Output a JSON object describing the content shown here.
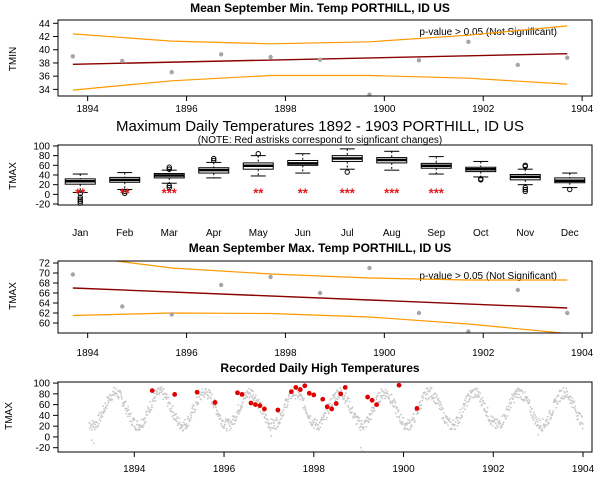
{
  "chart_data": [
    {
      "type": "scatter",
      "title": "Mean September Min. Temp PORTHILL, ID US",
      "ylabel": "TMIN",
      "xlim": [
        1893.4,
        1904.2
      ],
      "ylim": [
        33,
        44.5
      ],
      "x_ticks": [
        "1894",
        "1896",
        "1898",
        "1900",
        "1902",
        "1904"
      ],
      "y_ticks": [
        "34",
        "36",
        "38",
        "40",
        "42",
        "44"
      ],
      "annotation": "p-value > 0.05 (Not Significant)",
      "points": [
        {
          "x": 1893.7,
          "y": 39.0
        },
        {
          "x": 1894.7,
          "y": 38.3
        },
        {
          "x": 1895.7,
          "y": 36.6
        },
        {
          "x": 1896.7,
          "y": 39.3
        },
        {
          "x": 1897.7,
          "y": 38.9
        },
        {
          "x": 1898.7,
          "y": 38.5
        },
        {
          "x": 1899.7,
          "y": 33.2
        },
        {
          "x": 1900.7,
          "y": 38.4
        },
        {
          "x": 1901.7,
          "y": 41.2
        },
        {
          "x": 1902.7,
          "y": 37.7
        },
        {
          "x": 1903.7,
          "y": 38.8
        }
      ],
      "trend": [
        {
          "x": 1893.7,
          "y": 37.8
        },
        {
          "x": 1903.7,
          "y": 39.4
        }
      ],
      "upper_band": [
        {
          "x": 1893.7,
          "y": 42.4
        },
        {
          "x": 1895.7,
          "y": 41.3
        },
        {
          "x": 1897.7,
          "y": 40.9
        },
        {
          "x": 1899.7,
          "y": 41.2
        },
        {
          "x": 1901.7,
          "y": 42.2
        },
        {
          "x": 1903.7,
          "y": 43.6
        }
      ],
      "lower_band": [
        {
          "x": 1893.7,
          "y": 33.9
        },
        {
          "x": 1895.7,
          "y": 35.3
        },
        {
          "x": 1897.7,
          "y": 36.1
        },
        {
          "x": 1899.7,
          "y": 36.1
        },
        {
          "x": 1901.7,
          "y": 35.7
        },
        {
          "x": 1903.7,
          "y": 34.8
        }
      ],
      "colors": {
        "points": "#a6a6a6",
        "trend": "#8b0000",
        "band": "#ff9900"
      }
    },
    {
      "type": "box",
      "title": "Maximum Daily Temperatures 1892 - 1903 PORTHILL, ID US",
      "subtitle": "(NOTE: Red astrisks correspond to signficant changes)",
      "ylabel": "TMAX",
      "ylim": [
        -22,
        102
      ],
      "y_ticks": [
        "100",
        "80",
        "60",
        "40",
        "20",
        "0",
        "-20"
      ],
      "categories": [
        "Jan",
        "Feb",
        "Mar",
        "Apr",
        "May",
        "Jun",
        "Jul",
        "Aug",
        "Sep",
        "Oct",
        "Nov",
        "Dec"
      ],
      "boxes": [
        {
          "min": 4,
          "q1": 21,
          "median": 27,
          "q3": 32,
          "max": 42,
          "outliers": [
            -6,
            -10,
            -14,
            -18,
            2
          ]
        },
        {
          "min": 10,
          "q1": 25,
          "median": 30,
          "q3": 35,
          "max": 45,
          "outliers": [
            6,
            2
          ]
        },
        {
          "min": 23,
          "q1": 34,
          "median": 39,
          "q3": 43,
          "max": 50,
          "outliers": [
            18,
            14,
            52,
            56
          ]
        },
        {
          "min": 34,
          "q1": 44,
          "median": 50,
          "q3": 55,
          "max": 66,
          "outliers": [
            74,
            70
          ]
        },
        {
          "min": 38,
          "q1": 52,
          "median": 59,
          "q3": 65,
          "max": 80,
          "outliers": [
            84
          ]
        },
        {
          "min": 44,
          "q1": 60,
          "median": 64,
          "q3": 70,
          "max": 84,
          "outliers": []
        },
        {
          "min": 52,
          "q1": 68,
          "median": 74,
          "q3": 80,
          "max": 94,
          "outliers": [
            46
          ]
        },
        {
          "min": 50,
          "q1": 65,
          "median": 71,
          "q3": 76,
          "max": 89,
          "outliers": []
        },
        {
          "min": 42,
          "q1": 54,
          "median": 59,
          "q3": 64,
          "max": 78,
          "outliers": []
        },
        {
          "min": 36,
          "q1": 47,
          "median": 52,
          "q3": 56,
          "max": 68,
          "outliers": [
            32,
            30
          ]
        },
        {
          "min": 20,
          "q1": 30,
          "median": 36,
          "q3": 41,
          "max": 52,
          "outliers": [
            6,
            10,
            14,
            58,
            60
          ]
        },
        {
          "min": 14,
          "q1": 24,
          "median": 28,
          "q3": 34,
          "max": 44,
          "outliers": [
            10
          ]
        }
      ],
      "significance": [
        "**",
        "**",
        "***",
        "",
        "**",
        "**",
        "***",
        "***",
        "***",
        "",
        "",
        ""
      ],
      "colors": {
        "stars": "#e31a1c"
      }
    },
    {
      "type": "scatter",
      "title": "Mean September Max. Temp PORTHILL, ID US",
      "ylabel": "TMAX",
      "xlim": [
        1893.4,
        1904.2
      ],
      "ylim": [
        58,
        72.4
      ],
      "x_ticks": [
        "1894",
        "1896",
        "1898",
        "1900",
        "1902",
        "1904"
      ],
      "y_ticks": [
        "60",
        "62",
        "64",
        "66",
        "68",
        "70",
        "72"
      ],
      "annotation": "p-value > 0.05 (Not Significant)",
      "points": [
        {
          "x": 1893.7,
          "y": 69.7
        },
        {
          "x": 1894.7,
          "y": 63.3
        },
        {
          "x": 1895.7,
          "y": 61.7
        },
        {
          "x": 1896.7,
          "y": 67.6
        },
        {
          "x": 1897.7,
          "y": 69.2
        },
        {
          "x": 1898.7,
          "y": 66.0
        },
        {
          "x": 1899.7,
          "y": 71.0
        },
        {
          "x": 1900.7,
          "y": 62.0
        },
        {
          "x": 1901.7,
          "y": 58.3
        },
        {
          "x": 1902.7,
          "y": 66.6
        },
        {
          "x": 1903.7,
          "y": 62.0
        }
      ],
      "trend": [
        {
          "x": 1893.7,
          "y": 67.0
        },
        {
          "x": 1903.7,
          "y": 63.0
        }
      ],
      "upper_band": [
        {
          "x": 1893.7,
          "y": 73.5
        },
        {
          "x": 1895.7,
          "y": 71.0
        },
        {
          "x": 1897.7,
          "y": 69.8
        },
        {
          "x": 1899.7,
          "y": 69.0
        },
        {
          "x": 1901.7,
          "y": 68.6
        },
        {
          "x": 1903.7,
          "y": 68.6
        }
      ],
      "lower_band": [
        {
          "x": 1893.7,
          "y": 61.5
        },
        {
          "x": 1895.7,
          "y": 62.0
        },
        {
          "x": 1897.7,
          "y": 61.9
        },
        {
          "x": 1899.7,
          "y": 61.2
        },
        {
          "x": 1901.7,
          "y": 59.8
        },
        {
          "x": 1903.7,
          "y": 57.9
        }
      ],
      "colors": {
        "points": "#a6a6a6",
        "trend": "#8b0000",
        "band": "#ff9900"
      }
    },
    {
      "type": "scatter",
      "title": "Recorded Daily High Temperatures",
      "ylabel": "TMAX",
      "xlim": [
        1892.3,
        1904.2
      ],
      "ylim": [
        -28,
        102
      ],
      "x_ticks": [
        "1894",
        "1896",
        "1898",
        "1900",
        "1902",
        "1904"
      ],
      "y_ticks": [
        "100",
        "80",
        "60",
        "40",
        "20",
        "0",
        "-20"
      ],
      "series": [
        {
          "name": "daily",
          "x_range": [
            1893.0,
            1904.0
          ],
          "y_min_winter": 22,
          "y_max_summer": 82
        },
        {
          "name": "record",
          "points": [
            {
              "x": 1894.4,
              "y": 86
            },
            {
              "x": 1894.9,
              "y": 79
            },
            {
              "x": 1895.4,
              "y": 83
            },
            {
              "x": 1895.8,
              "y": 64
            },
            {
              "x": 1896.3,
              "y": 82
            },
            {
              "x": 1896.4,
              "y": 79
            },
            {
              "x": 1896.6,
              "y": 63
            },
            {
              "x": 1896.7,
              "y": 60
            },
            {
              "x": 1896.8,
              "y": 58
            },
            {
              "x": 1896.9,
              "y": 52
            },
            {
              "x": 1897.2,
              "y": 50
            },
            {
              "x": 1897.5,
              "y": 84
            },
            {
              "x": 1897.6,
              "y": 92
            },
            {
              "x": 1897.7,
              "y": 88
            },
            {
              "x": 1897.8,
              "y": 95
            },
            {
              "x": 1897.9,
              "y": 81
            },
            {
              "x": 1898.0,
              "y": 78
            },
            {
              "x": 1898.2,
              "y": 70
            },
            {
              "x": 1898.3,
              "y": 56
            },
            {
              "x": 1898.4,
              "y": 52
            },
            {
              "x": 1898.5,
              "y": 62
            },
            {
              "x": 1898.6,
              "y": 80
            },
            {
              "x": 1898.7,
              "y": 92
            },
            {
              "x": 1899.2,
              "y": 74
            },
            {
              "x": 1899.3,
              "y": 68
            },
            {
              "x": 1899.4,
              "y": 60
            },
            {
              "x": 1899.9,
              "y": 96
            },
            {
              "x": 1900.3,
              "y": 53
            }
          ]
        }
      ],
      "colors": {
        "daily": "#c8c8c8",
        "record": "#e00000"
      }
    }
  ]
}
